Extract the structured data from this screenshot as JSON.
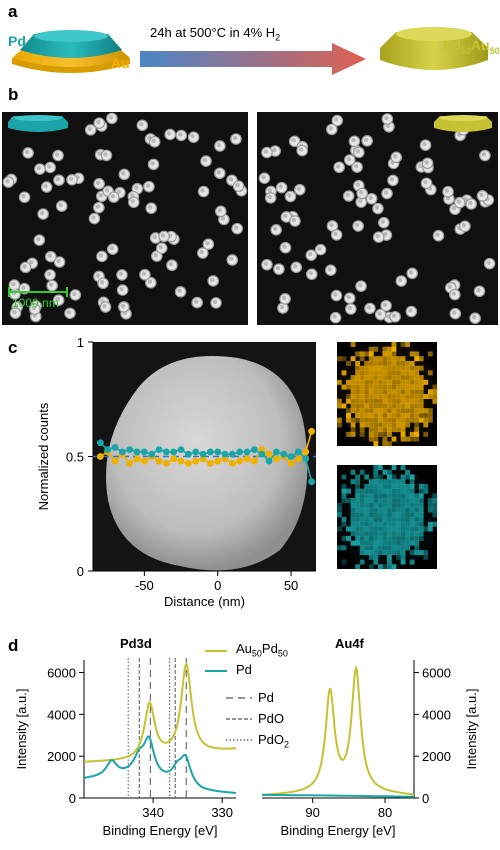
{
  "panel_labels": {
    "a": "a",
    "b": "b",
    "c": "c",
    "d": "d"
  },
  "panel_a": {
    "left_top_label": "Pd",
    "left_bottom_label": "Au",
    "arrow_text": "24h at 500°C in 4% H",
    "arrow_text_sub": "2",
    "product_label_main": "Pd",
    "product_sub1": "50",
    "product_label_mid": "Au",
    "product_sub2": "50",
    "colors": {
      "pd": "#1aa6a8",
      "au": "#f0b000",
      "alloy": "#c6c234"
    }
  },
  "panel_b": {
    "scale_bar": "1000 nm",
    "scale_color": "#2ecc2e"
  },
  "panel_c": {
    "chart_data": {
      "type": "line",
      "xlabel": "Distance (nm)",
      "ylabel": "Normalized counts",
      "xlim": [
        -85,
        67
      ],
      "ylim": [
        0,
        1
      ],
      "xticks": [
        -50,
        0,
        50
      ],
      "yticks": [
        0,
        0.5,
        1
      ],
      "reference_line": 0.5,
      "series": [
        {
          "name": "",
          "color": "#f0b000",
          "x": [
            -80,
            -75,
            -70,
            -65,
            -60,
            -55,
            -50,
            -45,
            -40,
            -35,
            -30,
            -25,
            -20,
            -15,
            -10,
            -5,
            0,
            5,
            10,
            15,
            20,
            25,
            30,
            35,
            40,
            45,
            50,
            55,
            60,
            64
          ],
          "y": [
            0.5,
            0.52,
            0.48,
            0.51,
            0.47,
            0.49,
            0.48,
            0.5,
            0.48,
            0.47,
            0.49,
            0.48,
            0.47,
            0.48,
            0.49,
            0.47,
            0.48,
            0.49,
            0.47,
            0.48,
            0.49,
            0.48,
            0.53,
            0.51,
            0.49,
            0.5,
            0.47,
            0.49,
            0.52,
            0.61
          ]
        },
        {
          "name": "",
          "color": "#1aa6a8",
          "x": [
            -80,
            -75,
            -70,
            -65,
            -60,
            -55,
            -50,
            -45,
            -40,
            -35,
            -30,
            -25,
            -20,
            -15,
            -10,
            -5,
            0,
            5,
            10,
            15,
            20,
            25,
            30,
            35,
            40,
            45,
            50,
            55,
            60,
            64
          ],
          "y": [
            0.56,
            0.53,
            0.54,
            0.52,
            0.53,
            0.52,
            0.52,
            0.51,
            0.53,
            0.52,
            0.52,
            0.53,
            0.51,
            0.52,
            0.51,
            0.52,
            0.52,
            0.51,
            0.51,
            0.52,
            0.52,
            0.53,
            0.51,
            0.48,
            0.52,
            0.51,
            0.5,
            0.52,
            0.49,
            0.39
          ]
        }
      ]
    }
  },
  "panel_d": {
    "chart_data": [
      {
        "type": "line",
        "title": "Pd3d",
        "xlabel": "Binding Energy [eV]",
        "ylabel": "Intensity [a.u.]",
        "xlim": [
          350,
          328
        ],
        "ylim": [
          0,
          6600
        ],
        "xticks": [
          340,
          330
        ],
        "yticks": [
          0,
          2000,
          4000,
          6000
        ],
        "reference_lines": {
          "Pd": [
            340.4,
            335.2
          ],
          "PdO": [
            342.0,
            336.8
          ],
          "PdO2": [
            343.6,
            337.6
          ]
        },
        "series": [
          {
            "name": "Au50Pd50",
            "color": "#c6c234",
            "peaks": [
              {
                "center": 340.5,
                "height": 2600,
                "width": 0.9
              },
              {
                "center": 335.2,
                "height": 4300,
                "width": 0.9
              }
            ],
            "baseline": [
              [
                350,
                1700
              ],
              [
                343,
                1750
              ],
              [
                338,
                1950
              ],
              [
                333,
                2100
              ],
              [
                328,
                2300
              ]
            ]
          },
          {
            "name": "Pd",
            "color": "#1aa6a8",
            "peaks": [
              {
                "center": 346.0,
                "height": 700,
                "width": 0.9
              },
              {
                "center": 342.0,
                "height": 750,
                "width": 0.9
              },
              {
                "center": 340.6,
                "height": 1700,
                "width": 0.9
              },
              {
                "center": 336.5,
                "height": 600,
                "width": 0.9
              },
              {
                "center": 335.3,
                "height": 1250,
                "width": 0.9
              }
            ],
            "baseline": [
              [
                350,
                900
              ],
              [
                343,
                1100
              ],
              [
                338,
                750
              ],
              [
                333,
                300
              ],
              [
                328,
                200
              ]
            ]
          }
        ]
      },
      {
        "type": "line",
        "title": "Au4f",
        "xlabel": "Binding Energy [eV]",
        "ylabel": "Intensity [a.u.]",
        "xlim": [
          97,
          76
        ],
        "ylim": [
          0,
          6600
        ],
        "xticks": [
          90,
          80
        ],
        "yticks": [
          0,
          2000,
          4000,
          6000
        ],
        "series": [
          {
            "name": "Au50Pd50",
            "color": "#c6c234",
            "peaks": [
              {
                "center": 87.6,
                "height": 4750,
                "width": 0.75
              },
              {
                "center": 84.0,
                "height": 5750,
                "width": 0.75
              }
            ],
            "baseline": [
              [
                97,
                100
              ],
              [
                90,
                200
              ],
              [
                85,
                300
              ],
              [
                76,
                100
              ]
            ]
          },
          {
            "name": "Pd",
            "color": "#1aa6a8",
            "peaks": [],
            "baseline": [
              [
                97,
                150
              ],
              [
                88,
                120
              ],
              [
                76,
                60
              ]
            ]
          }
        ]
      }
    ],
    "legend": {
      "alloy_main": "Au",
      "alloy_sub1": "50",
      "alloy_mid": "Pd",
      "alloy_sub2": "50",
      "pd": "Pd",
      "ref_pd": "Pd",
      "ref_pdo": "PdO",
      "ref_pdo2_main": "PdO",
      "ref_pdo2_sub": "2"
    }
  }
}
